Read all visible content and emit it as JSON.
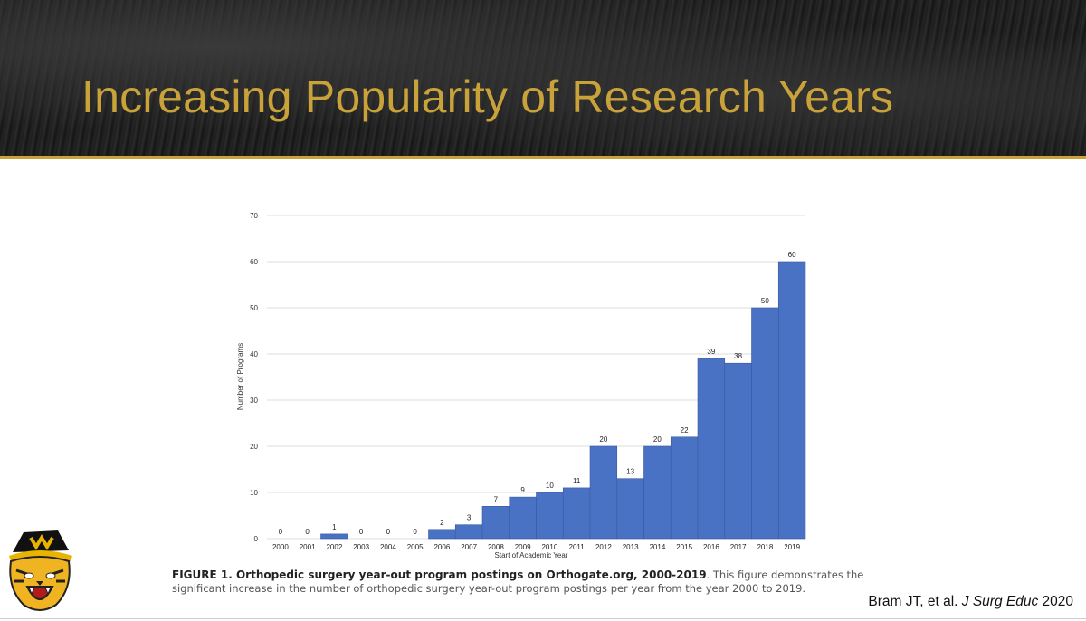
{
  "slide": {
    "title": "Increasing Popularity of Research Years",
    "caption_title": "FIGURE 1. Orthopedic surgery year-out program postings on Orthogate.org, 2000-2019",
    "caption_body": ". This figure demonstrates the significant increase in the number of orthopedic surgery year-out program postings per year from the year 2000 to 2019.",
    "citation_authors": "Bram JT, et al.",
    "citation_journal": "J Surg Educ",
    "citation_year": "2020",
    "mascot_icon": "tiger-mascot-logo"
  },
  "colors": {
    "title_gold": "#c9a23a",
    "bar_blue": "#4a72c4",
    "grid": "#dddddd"
  },
  "chart_data": {
    "type": "bar",
    "categories": [
      "2000",
      "2001",
      "2002",
      "2003",
      "2004",
      "2005",
      "2006",
      "2007",
      "2008",
      "2009",
      "2010",
      "2011",
      "2012",
      "2013",
      "2014",
      "2015",
      "2016",
      "2017",
      "2018",
      "2019"
    ],
    "values": [
      0,
      0,
      1,
      0,
      0,
      0,
      2,
      3,
      7,
      9,
      10,
      11,
      20,
      13,
      20,
      22,
      39,
      38,
      50,
      60
    ],
    "title": "",
    "xlabel": "Start of Academic Year",
    "ylabel": "Number of Programs",
    "ylim": [
      0,
      70
    ],
    "yticks": [
      0,
      10,
      20,
      30,
      40,
      50,
      60,
      70
    ],
    "grid": true,
    "data_labels": true,
    "legend": "none"
  }
}
